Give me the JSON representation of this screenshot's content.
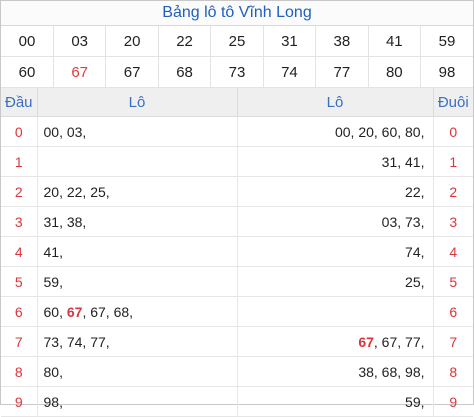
{
  "title": "Bảng lô tô Vĩnh Long",
  "numbers_row1": [
    "00",
    "03",
    "20",
    "22",
    "25",
    "31",
    "38",
    "41",
    "59"
  ],
  "numbers_row2": [
    "60",
    "67",
    "67",
    "68",
    "73",
    "74",
    "77",
    "80",
    "98"
  ],
  "highlight_color": "#d9363e",
  "headers": {
    "dau": "Đầu",
    "lo_left": "Lô",
    "lo_right": "Lô",
    "duoi": "Đuôi"
  },
  "rows": [
    {
      "dau": "0",
      "left": "00, 03,",
      "right": "00, 20, 60, 80,",
      "duoi": "0"
    },
    {
      "dau": "1",
      "left": "",
      "right": "31, 41,",
      "duoi": "1"
    },
    {
      "dau": "2",
      "left": "20, 22, 25,",
      "right": "22,",
      "duoi": "2"
    },
    {
      "dau": "3",
      "left": "31, 38,",
      "right": "03, 73,",
      "duoi": "3"
    },
    {
      "dau": "4",
      "left": "41,",
      "right": "74,",
      "duoi": "4"
    },
    {
      "dau": "5",
      "left": "59,",
      "right": "25,",
      "duoi": "5"
    },
    {
      "dau": "6",
      "left_parts": [
        "60, ",
        "67",
        ", 67, 68,"
      ],
      "right": "",
      "duoi": "6"
    },
    {
      "dau": "7",
      "left": "73, 74, 77,",
      "right_parts": [
        "67",
        ", 67, 77,"
      ],
      "duoi": "7"
    },
    {
      "dau": "8",
      "left": "80,",
      "right": "38, 68, 98,",
      "duoi": "8"
    },
    {
      "dau": "9",
      "left": "98,",
      "right": "59,",
      "duoi": "9"
    }
  ]
}
